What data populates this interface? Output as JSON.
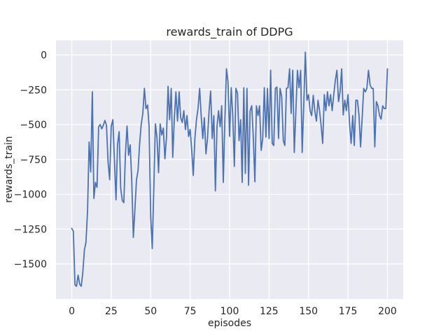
{
  "style": {
    "figure_bg": "#ffffff",
    "axes_bg": "#eaeaf2",
    "grid_color": "#ffffff",
    "text_color": "#262626",
    "line_color": "#4c72b0"
  },
  "chart_data": {
    "type": "line",
    "title": "rewards_train of DDPG",
    "xlabel": "episodes",
    "ylabel": "rewards_train",
    "grid": true,
    "legend": false,
    "x_ticks": [
      0,
      25,
      50,
      75,
      100,
      125,
      150,
      175,
      200
    ],
    "y_ticks": [
      0,
      -250,
      -500,
      -750,
      -1000,
      -1250,
      -1500
    ],
    "xlim": [
      -10,
      210
    ],
    "ylim": [
      -1752,
      105
    ],
    "x_start": 0,
    "x_step": 1,
    "series": [
      {
        "name": "rewards_train",
        "color": "#4c72b0",
        "values": [
          -1245,
          -1265,
          -1650,
          -1660,
          -1580,
          -1645,
          -1660,
          -1560,
          -1400,
          -1345,
          -1115,
          -625,
          -840,
          -265,
          -1030,
          -915,
          -950,
          -515,
          -500,
          -530,
          -505,
          -470,
          -505,
          -770,
          -895,
          -510,
          -465,
          -745,
          -1040,
          -645,
          -550,
          -955,
          -1045,
          -1060,
          -710,
          -510,
          -720,
          -645,
          -900,
          -1310,
          -1110,
          -895,
          -830,
          -635,
          -500,
          -420,
          -240,
          -385,
          -360,
          -515,
          -1160,
          -1390,
          -945,
          -495,
          -595,
          -845,
          -495,
          -575,
          -525,
          -745,
          -595,
          -225,
          -465,
          -240,
          -735,
          -450,
          -265,
          -475,
          -265,
          -450,
          -485,
          -400,
          -535,
          -435,
          -585,
          -535,
          -685,
          -865,
          -600,
          -465,
          -385,
          -240,
          -435,
          -600,
          -450,
          -710,
          -600,
          -400,
          -260,
          -600,
          -435,
          -975,
          -515,
          -400,
          -515,
          -365,
          -915,
          -475,
          -100,
          -190,
          -585,
          -235,
          -435,
          -800,
          -240,
          -275,
          -615,
          -465,
          -915,
          -235,
          -850,
          -240,
          -935,
          -400,
          -365,
          -585,
          -910,
          -365,
          -435,
          -365,
          -685,
          -600,
          -235,
          -590,
          -240,
          -600,
          -110,
          -635,
          -650,
          -240,
          -230,
          -600,
          -240,
          -300,
          -615,
          -650,
          -240,
          -235,
          -100,
          -420,
          -110,
          -700,
          -400,
          -110,
          -235,
          -110,
          -700,
          -350,
          20,
          -325,
          -285,
          -400,
          -435,
          -290,
          -400,
          -475,
          -325,
          -400,
          -510,
          -635,
          -285,
          -400,
          -265,
          -365,
          -285,
          -400,
          -285,
          -180,
          -110,
          -335,
          -265,
          -100,
          -430,
          -325,
          -400,
          -285,
          -485,
          -635,
          -435,
          -650,
          -325,
          -325,
          -435,
          -660,
          -450,
          -240,
          -265,
          -240,
          -110,
          -215,
          -240,
          -240,
          -660,
          -335,
          -365,
          -435,
          -460,
          -365,
          -385,
          -385,
          -100
        ]
      }
    ]
  }
}
